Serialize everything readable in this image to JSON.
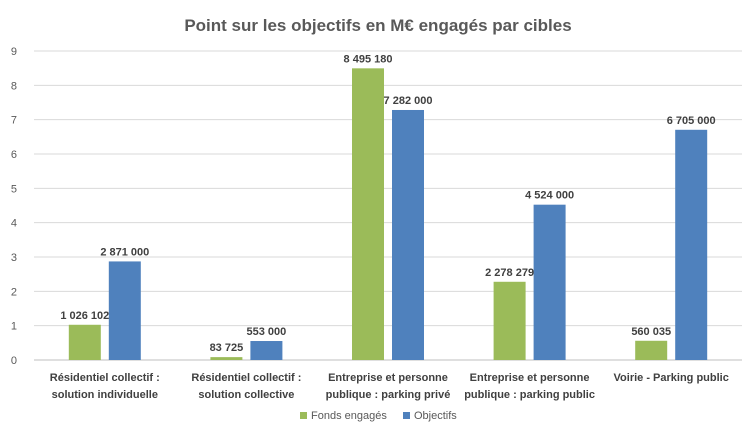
{
  "chart_data": {
    "type": "bar",
    "title": "Point sur les objectifs en M€ engagés par cibles",
    "ylim": [
      0,
      9
    ],
    "yticks": [
      "0",
      "1",
      "2",
      "3",
      "4",
      "5",
      "6",
      "7",
      "8",
      "9"
    ],
    "grid": true,
    "legend_position": "bottom",
    "categories": [
      [
        "Résidentiel collectif :",
        "solution individuelle"
      ],
      [
        "Résidentiel collectif :",
        "solution collective"
      ],
      [
        "Entreprise et personne",
        "publique : parking privé"
      ],
      [
        "Entreprise et personne",
        "publique : parking public"
      ],
      [
        "Voirie - Parking public"
      ]
    ],
    "series": [
      {
        "name": "Fonds engagés",
        "color": "#9BBB59",
        "values": [
          1.026102,
          0.083725,
          8.49518,
          2.278279,
          0.560035
        ],
        "labels": [
          "1 026 102",
          "83 725",
          "8 495 180",
          "2 278 279",
          "560 035"
        ]
      },
      {
        "name": "Objectifs",
        "color": "#4F81BD",
        "values": [
          2.871,
          0.553,
          7.282,
          4.524,
          6.705
        ],
        "labels": [
          "2 871 000",
          "553 000",
          "7 282 000",
          "4 524 000",
          "6 705 000"
        ]
      }
    ]
  }
}
